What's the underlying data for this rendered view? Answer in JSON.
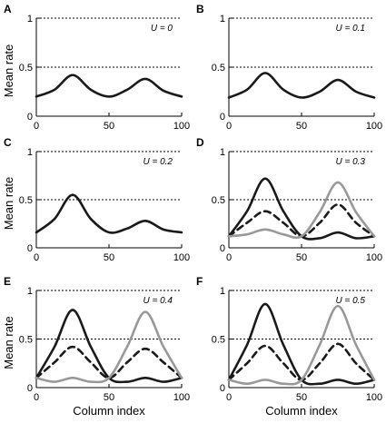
{
  "chart_data": [
    {
      "type": "line",
      "panel": "A",
      "annotation": "U = 0",
      "ylabel": "Mean rate",
      "xlabel": "",
      "xlim": [
        0,
        100
      ],
      "ylim": [
        0,
        1
      ],
      "xticks": [
        "0",
        "50",
        "100"
      ],
      "yticks": [
        "0",
        "0.5",
        "1"
      ],
      "reference_lines": [
        0.5,
        1
      ],
      "series": [
        {
          "style": "solid",
          "color": "#1a1a1a",
          "x": [
            0,
            12.5,
            25,
            37.5,
            50,
            62.5,
            75,
            87.5,
            100
          ],
          "values": [
            0.2,
            0.27,
            0.42,
            0.27,
            0.2,
            0.27,
            0.38,
            0.26,
            0.2
          ]
        }
      ]
    },
    {
      "type": "line",
      "panel": "B",
      "annotation": "U = 0.1",
      "ylabel": "",
      "xlabel": "",
      "xlim": [
        0,
        100
      ],
      "ylim": [
        0,
        1
      ],
      "xticks": [
        "0",
        "50",
        "100"
      ],
      "yticks": [
        "0",
        "0.5",
        "1"
      ],
      "reference_lines": [
        0.5,
        1
      ],
      "series": [
        {
          "style": "solid",
          "color": "#1a1a1a",
          "x": [
            0,
            12.5,
            25,
            37.5,
            50,
            62.5,
            75,
            87.5,
            100
          ],
          "values": [
            0.19,
            0.27,
            0.44,
            0.27,
            0.19,
            0.25,
            0.37,
            0.25,
            0.19
          ]
        }
      ]
    },
    {
      "type": "line",
      "panel": "C",
      "annotation": "U = 0.2",
      "ylabel": "Mean rate",
      "xlabel": "",
      "xlim": [
        0,
        100
      ],
      "ylim": [
        0,
        1
      ],
      "xticks": [
        "0",
        "50",
        "100"
      ],
      "yticks": [
        "0",
        "0.5",
        "1"
      ],
      "reference_lines": [
        0.5,
        1
      ],
      "series": [
        {
          "style": "solid",
          "color": "#1a1a1a",
          "x": [
            0,
            12.5,
            25,
            37.5,
            50,
            62.5,
            75,
            87.5,
            100
          ],
          "values": [
            0.16,
            0.3,
            0.55,
            0.3,
            0.16,
            0.2,
            0.28,
            0.19,
            0.16
          ]
        }
      ]
    },
    {
      "type": "line",
      "panel": "D",
      "annotation": "U = 0.3",
      "ylabel": "",
      "xlabel": "",
      "xlim": [
        0,
        100
      ],
      "ylim": [
        0,
        1
      ],
      "xticks": [
        "0",
        "50",
        "100"
      ],
      "yticks": [
        "0",
        "0.5",
        "1"
      ],
      "reference_lines": [
        0.5,
        1
      ],
      "series": [
        {
          "style": "solid",
          "color": "#1a1a1a",
          "x": [
            0,
            12.5,
            25,
            37.5,
            50,
            62.5,
            75,
            87.5,
            100
          ],
          "values": [
            0.12,
            0.38,
            0.72,
            0.38,
            0.12,
            0.1,
            0.16,
            0.1,
            0.12
          ]
        },
        {
          "style": "dashed",
          "color": "#1a1a1a",
          "x": [
            0,
            12.5,
            25,
            37.5,
            50,
            62.5,
            75,
            87.5,
            100
          ],
          "values": [
            0.12,
            0.26,
            0.38,
            0.26,
            0.12,
            0.26,
            0.45,
            0.26,
            0.12
          ]
        },
        {
          "style": "solid",
          "color": "#999999",
          "x": [
            0,
            12.5,
            25,
            37.5,
            50,
            62.5,
            75,
            87.5,
            100
          ],
          "values": [
            0.12,
            0.14,
            0.19,
            0.14,
            0.12,
            0.37,
            0.68,
            0.37,
            0.12
          ]
        }
      ]
    },
    {
      "type": "line",
      "panel": "E",
      "annotation": "U = 0.4",
      "ylabel": "Mean rate",
      "xlabel": "Column index",
      "xlim": [
        0,
        100
      ],
      "ylim": [
        0,
        1
      ],
      "xticks": [
        "0",
        "50",
        "100"
      ],
      "yticks": [
        "0",
        "0.5",
        "1"
      ],
      "reference_lines": [
        0.5,
        1
      ],
      "series": [
        {
          "style": "solid",
          "color": "#1a1a1a",
          "x": [
            0,
            12.5,
            25,
            37.5,
            50,
            62.5,
            75,
            87.5,
            100
          ],
          "values": [
            0.1,
            0.42,
            0.8,
            0.42,
            0.1,
            0.06,
            0.1,
            0.06,
            0.1
          ]
        },
        {
          "style": "dashed",
          "color": "#1a1a1a",
          "x": [
            0,
            12.5,
            25,
            37.5,
            50,
            62.5,
            75,
            87.5,
            100
          ],
          "values": [
            0.1,
            0.26,
            0.42,
            0.26,
            0.1,
            0.26,
            0.4,
            0.26,
            0.1
          ]
        },
        {
          "style": "solid",
          "color": "#999999",
          "x": [
            0,
            12.5,
            25,
            37.5,
            50,
            62.5,
            75,
            87.5,
            100
          ],
          "values": [
            0.1,
            0.06,
            0.1,
            0.06,
            0.1,
            0.42,
            0.78,
            0.42,
            0.1
          ]
        }
      ]
    },
    {
      "type": "line",
      "panel": "F",
      "annotation": "U = 0.5",
      "ylabel": "",
      "xlabel": "Column index",
      "xlim": [
        0,
        100
      ],
      "ylim": [
        0,
        1
      ],
      "xticks": [
        "0",
        "50",
        "100"
      ],
      "yticks": [
        "0",
        "0.5",
        "1"
      ],
      "reference_lines": [
        0.5,
        1
      ],
      "series": [
        {
          "style": "solid",
          "color": "#1a1a1a",
          "x": [
            0,
            12.5,
            25,
            37.5,
            50,
            62.5,
            75,
            87.5,
            100
          ],
          "values": [
            0.08,
            0.44,
            0.86,
            0.44,
            0.08,
            0.04,
            0.08,
            0.04,
            0.08
          ]
        },
        {
          "style": "dashed",
          "color": "#1a1a1a",
          "x": [
            0,
            12.5,
            25,
            37.5,
            50,
            62.5,
            75,
            87.5,
            100
          ],
          "values": [
            0.08,
            0.25,
            0.43,
            0.25,
            0.08,
            0.25,
            0.45,
            0.25,
            0.08
          ]
        },
        {
          "style": "solid",
          "color": "#999999",
          "x": [
            0,
            12.5,
            25,
            37.5,
            50,
            62.5,
            75,
            87.5,
            100
          ],
          "values": [
            0.08,
            0.04,
            0.08,
            0.04,
            0.08,
            0.44,
            0.84,
            0.44,
            0.08
          ]
        }
      ]
    }
  ]
}
